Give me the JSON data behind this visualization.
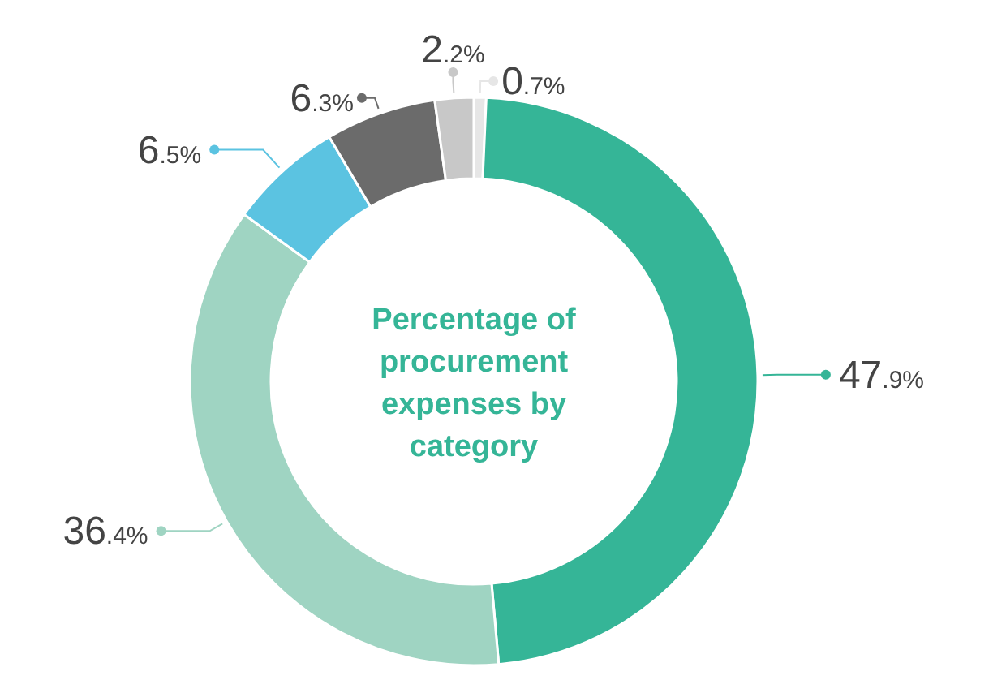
{
  "chart_data": {
    "type": "donut",
    "title": "Percentage of procurement expenses by category",
    "categories": [
      null,
      null,
      null,
      null,
      null,
      null
    ],
    "values": [
      0.7,
      47.9,
      36.4,
      6.5,
      6.3,
      2.2
    ],
    "colors": [
      "#e6e6e6",
      "#35b597",
      "#9fd4c2",
      "#5bc3e1",
      "#6b6b6b",
      "#c8c8c8"
    ],
    "value_labels": [
      "0.7%",
      "47.9%",
      "36.4%",
      "6.5%",
      "6.3%",
      "2.2%"
    ],
    "legend": false
  }
}
